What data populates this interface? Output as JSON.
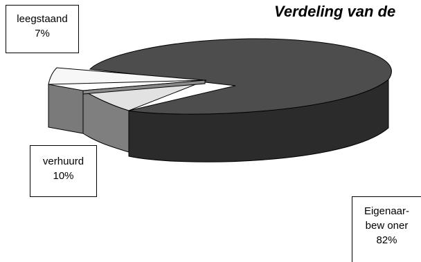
{
  "chart_data": {
    "type": "pie",
    "title": "Verdeling van de",
    "slices": [
      {
        "label_lines": [
          "leegstaand",
          "7%"
        ],
        "value": 7,
        "color": "#f7f7f7"
      },
      {
        "label_lines": [
          "verhuurd",
          "10%"
        ],
        "value": 10,
        "color": "#e2e2e2"
      },
      {
        "label_lines": [
          "Eigenaar-",
          "bew oner",
          "82%"
        ],
        "value": 82,
        "color": "#4d4d4d"
      }
    ],
    "style": "3d-exploded"
  }
}
